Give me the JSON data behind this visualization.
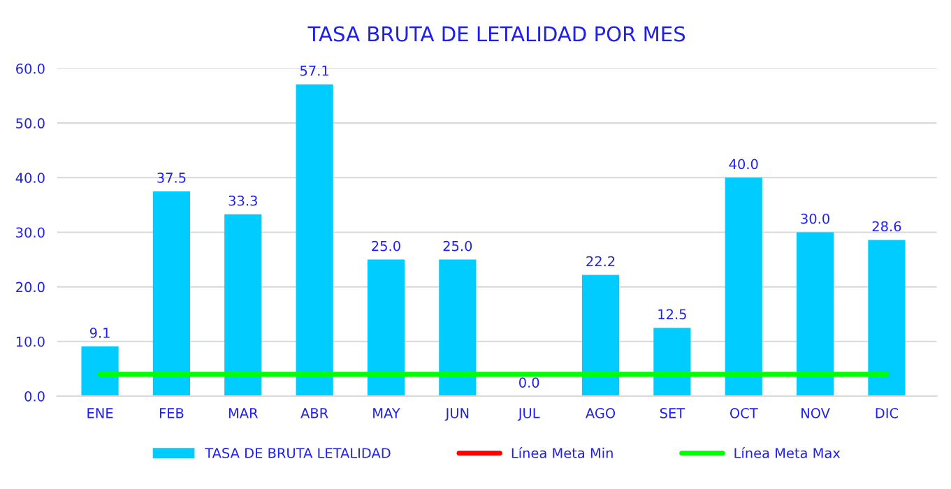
{
  "chart_data": {
    "type": "bar",
    "title": "TASA BRUTA DE LETALIDAD POR MES",
    "categories": [
      "ENE",
      "FEB",
      "MAR",
      "ABR",
      "MAY",
      "JUN",
      "JUL",
      "AGO",
      "SET",
      "OCT",
      "NOV",
      "DIC"
    ],
    "series": [
      {
        "name": "TASA DE BRUTA LETALIDAD",
        "color": "#00ccff",
        "values": [
          9.1,
          37.5,
          33.3,
          57.1,
          25.0,
          25.0,
          0.0,
          22.2,
          12.5,
          40.0,
          30.0,
          28.6
        ],
        "value_labels": [
          "9.1",
          "37.5",
          "33.3",
          "57.1",
          "25.0",
          "25.0",
          "0.0",
          "22.2",
          "12.5",
          "40.0",
          "30.0",
          "28.6"
        ]
      },
      {
        "name": "Línea Meta Min",
        "type": "line",
        "color": "#ff0000",
        "values": [
          null,
          null,
          null,
          null,
          null,
          null,
          null,
          null,
          null,
          null,
          null,
          null
        ]
      },
      {
        "name": "Línea Meta Max",
        "type": "line",
        "color": "#00ff00",
        "values": [
          4.0,
          4.0,
          4.0,
          4.0,
          4.0,
          4.0,
          4.0,
          4.0,
          4.0,
          4.0,
          4.0,
          4.0
        ]
      }
    ],
    "ylim": [
      0,
      60
    ],
    "yticks": [
      {
        "value": 0,
        "label": "0.0"
      },
      {
        "value": 10,
        "label": "10.0"
      },
      {
        "value": 20,
        "label": "20.0"
      },
      {
        "value": 30,
        "label": "30.0"
      },
      {
        "value": 40,
        "label": "40.0"
      },
      {
        "value": 50,
        "label": "50.0"
      },
      {
        "value": 60,
        "label": "60.0"
      }
    ],
    "grid": "y",
    "legend": "bottom"
  }
}
